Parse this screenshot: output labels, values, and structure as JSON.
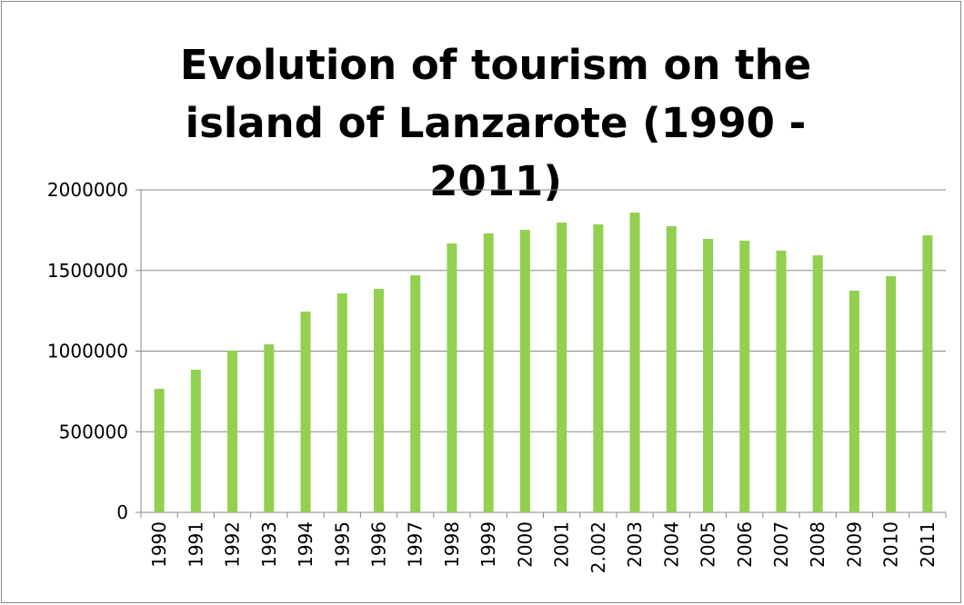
{
  "chart_data": {
    "type": "bar",
    "title": "Evolution of tourism on the island of Lanzarote (1990 - 2011)",
    "categories": [
      "1990",
      "1991",
      "1992",
      "1993",
      "1994",
      "1995",
      "1996",
      "1997",
      "1998",
      "1999",
      "2000",
      "2001",
      "2.002",
      "2003",
      "2004",
      "2005",
      "2006",
      "2007",
      "2008",
      "2009",
      "2010",
      "2011"
    ],
    "values": [
      766000,
      885000,
      1003000,
      1042000,
      1245000,
      1358000,
      1386000,
      1470000,
      1668000,
      1730000,
      1752000,
      1797000,
      1786000,
      1859000,
      1775000,
      1696000,
      1685000,
      1623000,
      1594000,
      1375000,
      1465000,
      1718000
    ],
    "color": "#92d050",
    "ylim": [
      0,
      2000000
    ],
    "yticks": [
      0,
      500000,
      1000000,
      1500000,
      2000000
    ],
    "grid": true
  }
}
